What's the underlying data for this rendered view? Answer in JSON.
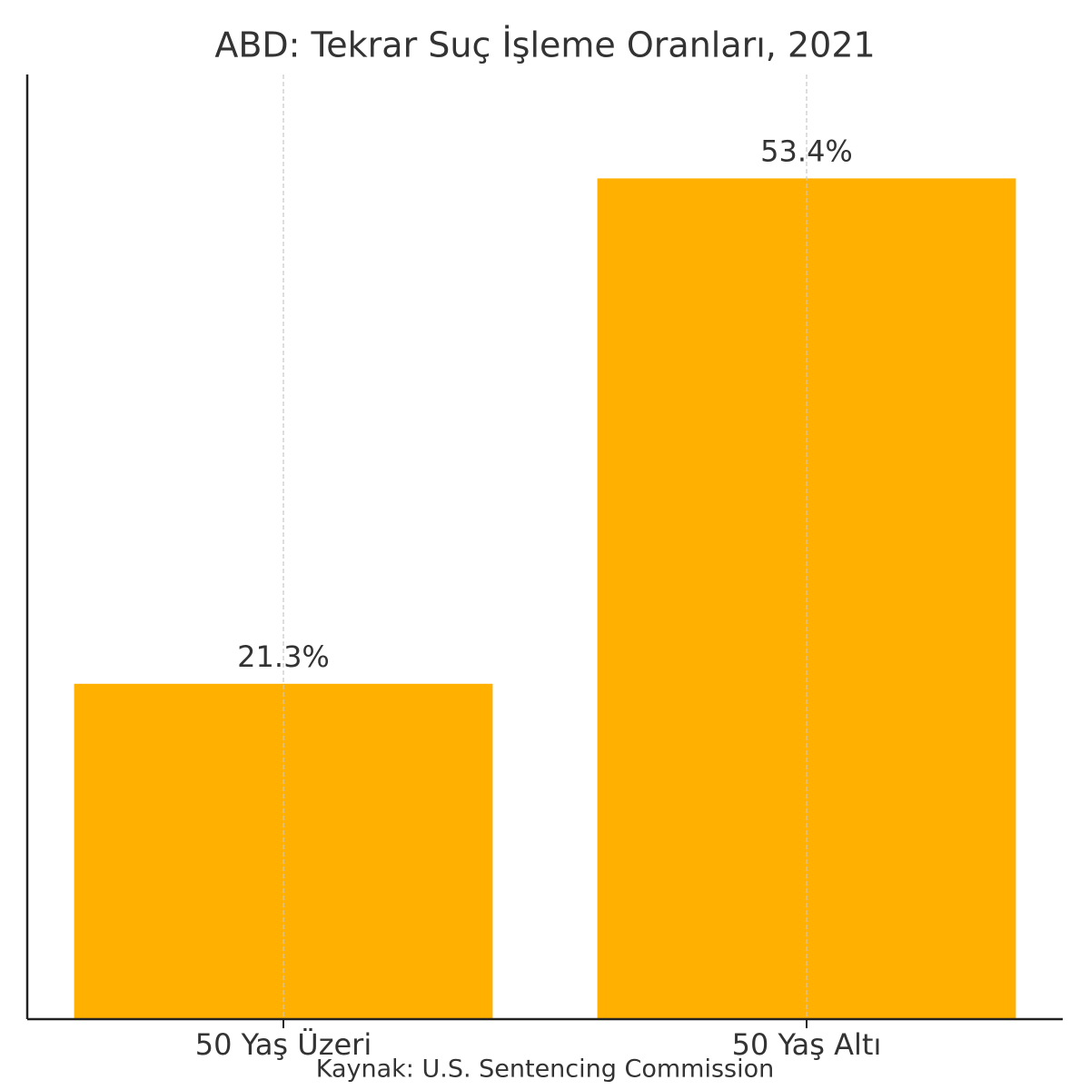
{
  "chart_data": {
    "type": "bar",
    "title": "ABD: Tekrar Suç İşleme Oranları, 2021",
    "categories": [
      "50 Yaş Üzeri",
      "50 Yaş Altı"
    ],
    "values": [
      21.3,
      53.4
    ],
    "value_labels": [
      "21.3%",
      "53.4%"
    ],
    "color": "#ffb000",
    "ylim": [
      0,
      60
    ],
    "grid": "x",
    "source": "Kaynak: U.S. Sentencing Commission"
  }
}
